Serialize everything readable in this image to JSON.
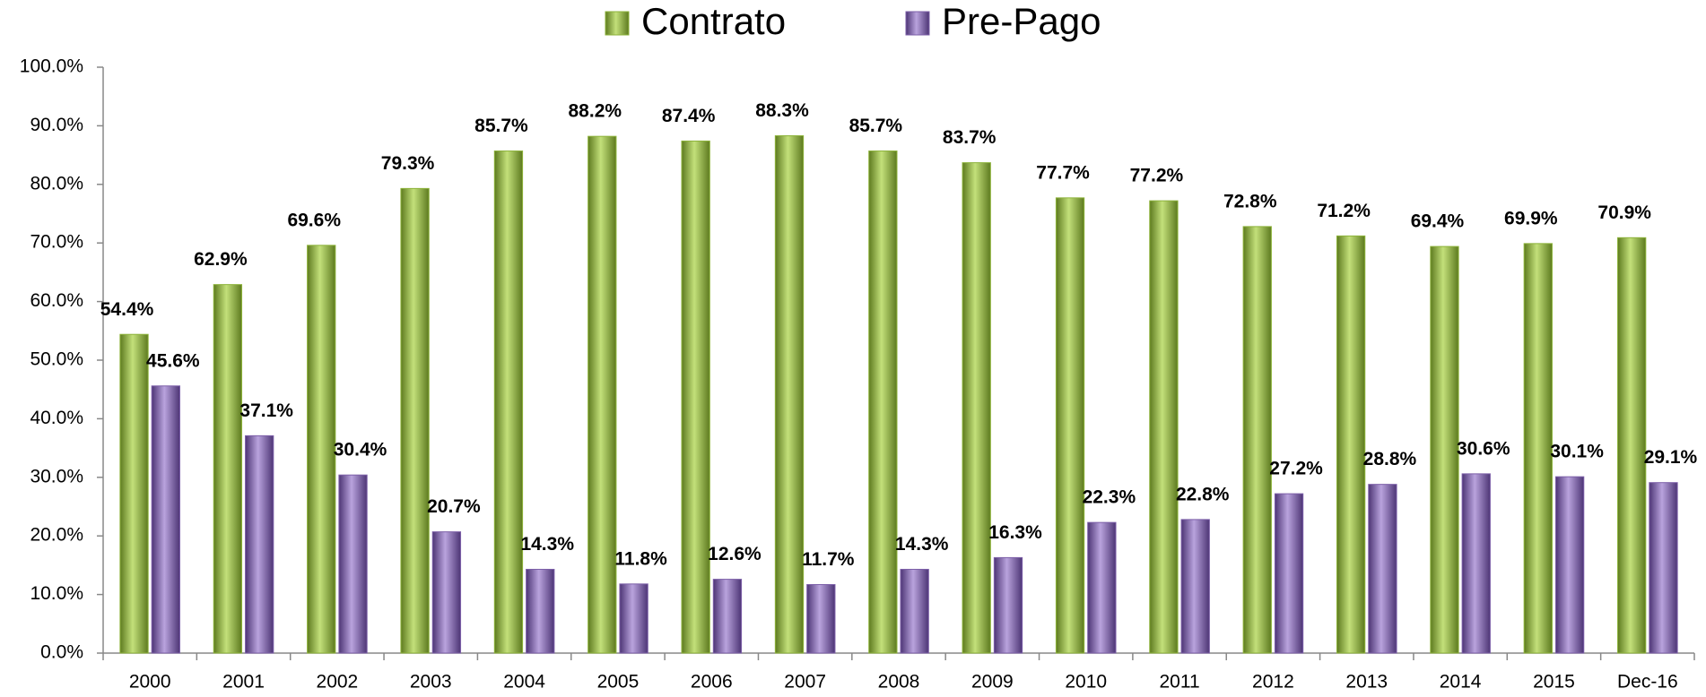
{
  "chart_data": {
    "type": "bar",
    "categories": [
      "2000",
      "2001",
      "2002",
      "2003",
      "2004",
      "2005",
      "2006",
      "2007",
      "2008",
      "2009",
      "2010",
      "2011",
      "2012",
      "2013",
      "2014",
      "2015",
      "Dec-16"
    ],
    "series": [
      {
        "name": "Contrato",
        "color": "#8db33a",
        "values": [
          54.4,
          62.9,
          69.6,
          79.3,
          85.7,
          88.2,
          87.4,
          88.3,
          85.7,
          83.7,
          77.7,
          77.2,
          72.8,
          71.2,
          69.4,
          69.9,
          70.9
        ],
        "value_labels": [
          "54.4%",
          "62.9%",
          "69.6%",
          "79.3%",
          "85.7%",
          "88.2%",
          "87.4%",
          "88.3%",
          "85.7%",
          "83.7%",
          "77.7%",
          "77.2%",
          "72.8%",
          "71.2%",
          "69.4%",
          "69.9%",
          "70.9%"
        ]
      },
      {
        "name": "Pre-Pago",
        "color": "#7c5fa8",
        "values": [
          45.6,
          37.1,
          30.4,
          20.7,
          14.3,
          11.8,
          12.6,
          11.7,
          14.3,
          16.3,
          22.3,
          22.8,
          27.2,
          28.8,
          30.6,
          30.1,
          29.1
        ],
        "value_labels": [
          "45.6%",
          "37.1%",
          "30.4%",
          "20.7%",
          "14.3%",
          "11.8%",
          "12.6%",
          "11.7%",
          "14.3%",
          "16.3%",
          "22.3%",
          "22.8%",
          "27.2%",
          "28.8%",
          "30.6%",
          "30.1%",
          "29.1%"
        ]
      }
    ],
    "ylim": [
      0,
      100
    ],
    "yticks": [
      {
        "value": 0,
        "label": "0.0%"
      },
      {
        "value": 10,
        "label": "10.0%"
      },
      {
        "value": 20,
        "label": "20.0%"
      },
      {
        "value": 30,
        "label": "30.0%"
      },
      {
        "value": 40,
        "label": "40.0%"
      },
      {
        "value": 50,
        "label": "50.0%"
      },
      {
        "value": 60,
        "label": "60.0%"
      },
      {
        "value": 70,
        "label": "70.0%"
      },
      {
        "value": 80,
        "label": "80.0%"
      },
      {
        "value": 90,
        "label": "90.0%"
      },
      {
        "value": 100,
        "label": "100.0%"
      }
    ],
    "grid": false,
    "legend": "top"
  }
}
